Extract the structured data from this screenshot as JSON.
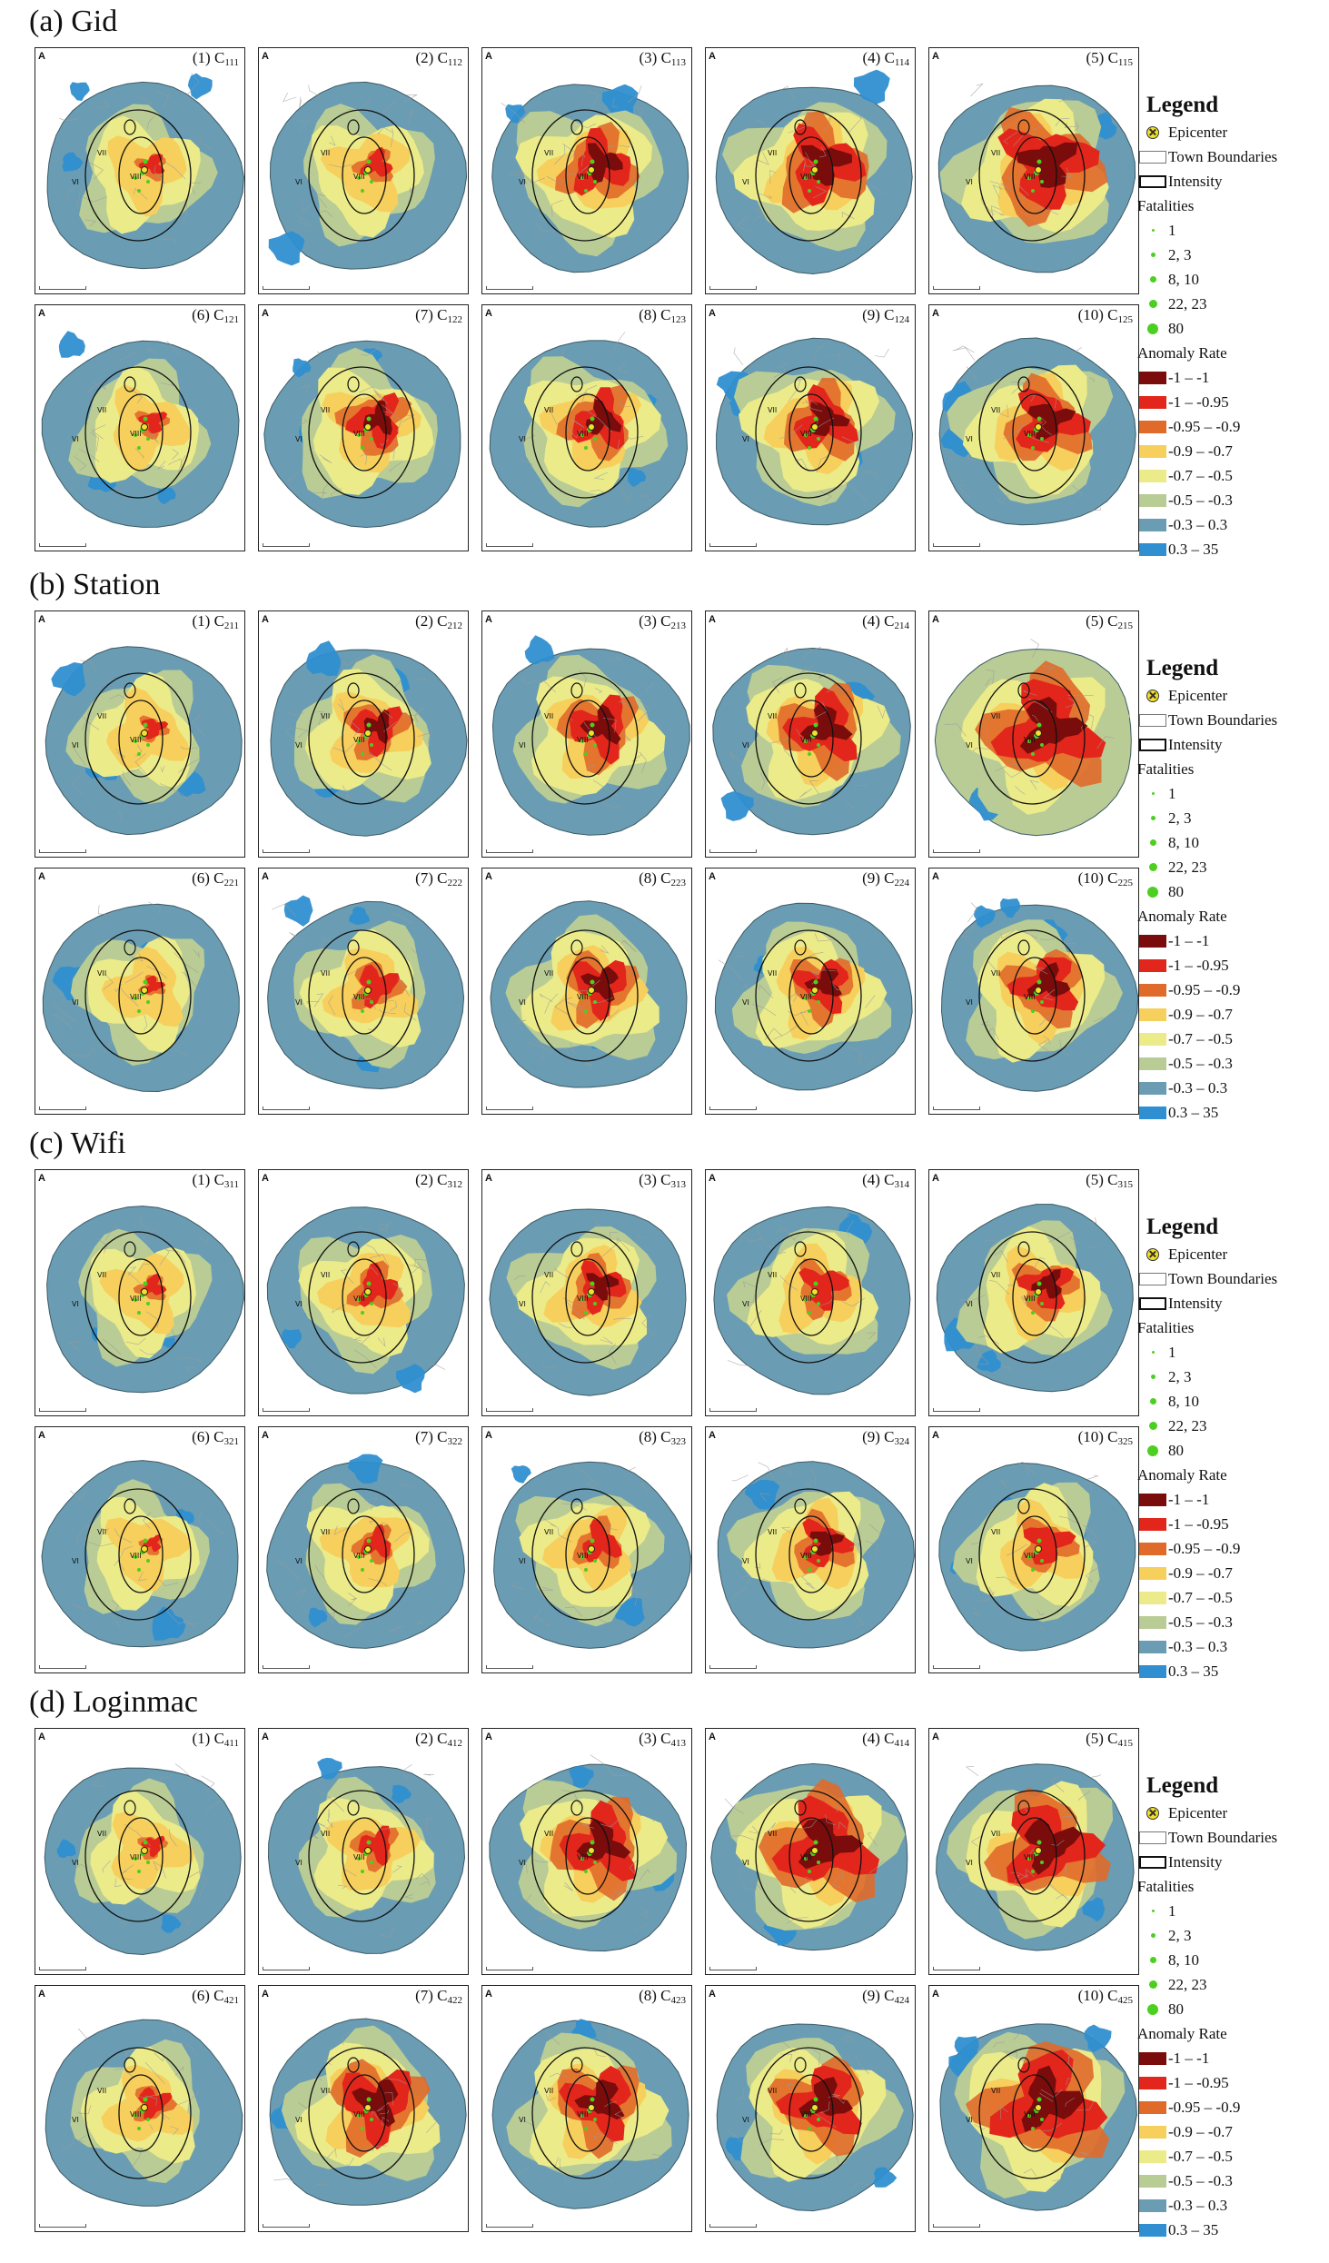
{
  "sections": [
    {
      "id": "a",
      "title": "(a) Gid",
      "panels": [
        {
          "num": "(1)",
          "code": "111"
        },
        {
          "num": "(2)",
          "code": "112"
        },
        {
          "num": "(3)",
          "code": "113"
        },
        {
          "num": "(4)",
          "code": "114"
        },
        {
          "num": "(5)",
          "code": "115"
        },
        {
          "num": "(6)",
          "code": "121"
        },
        {
          "num": "(7)",
          "code": "122"
        },
        {
          "num": "(8)",
          "code": "123"
        },
        {
          "num": "(9)",
          "code": "124"
        },
        {
          "num": "(10)",
          "code": "125"
        }
      ]
    },
    {
      "id": "b",
      "title": "(b) Station",
      "panels": [
        {
          "num": "(1)",
          "code": "211"
        },
        {
          "num": "(2)",
          "code": "212"
        },
        {
          "num": "(3)",
          "code": "213"
        },
        {
          "num": "(4)",
          "code": "214"
        },
        {
          "num": "(5)",
          "code": "215"
        },
        {
          "num": "(6)",
          "code": "221"
        },
        {
          "num": "(7)",
          "code": "222"
        },
        {
          "num": "(8)",
          "code": "223"
        },
        {
          "num": "(9)",
          "code": "224"
        },
        {
          "num": "(10)",
          "code": "225"
        }
      ]
    },
    {
      "id": "c",
      "title": "(c) Wifi",
      "panels": [
        {
          "num": "(1)",
          "code": "311"
        },
        {
          "num": "(2)",
          "code": "312"
        },
        {
          "num": "(3)",
          "code": "313"
        },
        {
          "num": "(4)",
          "code": "314"
        },
        {
          "num": "(5)",
          "code": "315"
        },
        {
          "num": "(6)",
          "code": "321"
        },
        {
          "num": "(7)",
          "code": "322"
        },
        {
          "num": "(8)",
          "code": "323"
        },
        {
          "num": "(9)",
          "code": "324"
        },
        {
          "num": "(10)",
          "code": "325"
        }
      ]
    },
    {
      "id": "d",
      "title": "(d) Loginmac",
      "panels": [
        {
          "num": "(1)",
          "code": "411"
        },
        {
          "num": "(2)",
          "code": "412"
        },
        {
          "num": "(3)",
          "code": "413"
        },
        {
          "num": "(4)",
          "code": "414"
        },
        {
          "num": "(5)",
          "code": "415"
        },
        {
          "num": "(6)",
          "code": "421"
        },
        {
          "num": "(7)",
          "code": "422"
        },
        {
          "num": "(8)",
          "code": "423"
        },
        {
          "num": "(9)",
          "code": "424"
        },
        {
          "num": "(10)",
          "code": "425"
        }
      ]
    }
  ],
  "map_labels": {
    "north": "A",
    "zone_outer": "VI",
    "zone_inner": "VII",
    "zone_core": "VIII",
    "panel_letter": "C"
  },
  "legend": {
    "title": "Legend",
    "epicenter": "Epicenter",
    "town_boundaries": "Town Boundaries",
    "intensity": "Intensity",
    "fatalities_title": "Fatalities",
    "fatalities": [
      "1",
      "2, 3",
      "8, 10",
      "22, 23",
      "80"
    ],
    "anomaly_title": "Anomaly Rate",
    "anomaly_classes": [
      {
        "label": "-1 – -1",
        "color": "#7a0c0c"
      },
      {
        "label": "-1 – -0.95",
        "color": "#e3261c"
      },
      {
        "label": "-0.95 – -0.9",
        "color": "#e06a2a"
      },
      {
        "label": "-0.9 – -0.7",
        "color": "#f7cf5c"
      },
      {
        "label": "-0.7 – -0.5",
        "color": "#eceb8a"
      },
      {
        "label": "-0.5 – -0.3",
        "color": "#b9cc95"
      },
      {
        "label": "-0.3 – 0.3",
        "color": "#6a9db3"
      },
      {
        "label": "0.3 – 35",
        "color": "#2f8fd0"
      }
    ]
  },
  "colors": {
    "background_blue": "#6a9db3",
    "pale_green": "#b9cc95",
    "light_yellow": "#eceb8a",
    "yellow": "#f7cf5c",
    "orange": "#e06a2a",
    "red": "#e3261c",
    "dark_red": "#7a0c0c",
    "bright_blue": "#2f8fd0",
    "fatality_green": "#4ccf20"
  },
  "panel_intensity": [
    [
      0.1,
      0.18,
      0.55,
      0.7,
      0.85,
      0.12,
      0.45,
      0.5,
      0.55,
      0.62
    ],
    [
      0.1,
      0.4,
      0.55,
      0.65,
      0.95,
      0.05,
      0.3,
      0.5,
      0.45,
      0.55
    ],
    [
      0.1,
      0.3,
      0.4,
      0.35,
      0.4,
      0.03,
      0.2,
      0.3,
      0.4,
      0.35
    ],
    [
      0.08,
      0.25,
      0.7,
      0.9,
      0.85,
      0.2,
      0.7,
      0.65,
      0.7,
      1.0
    ]
  ]
}
